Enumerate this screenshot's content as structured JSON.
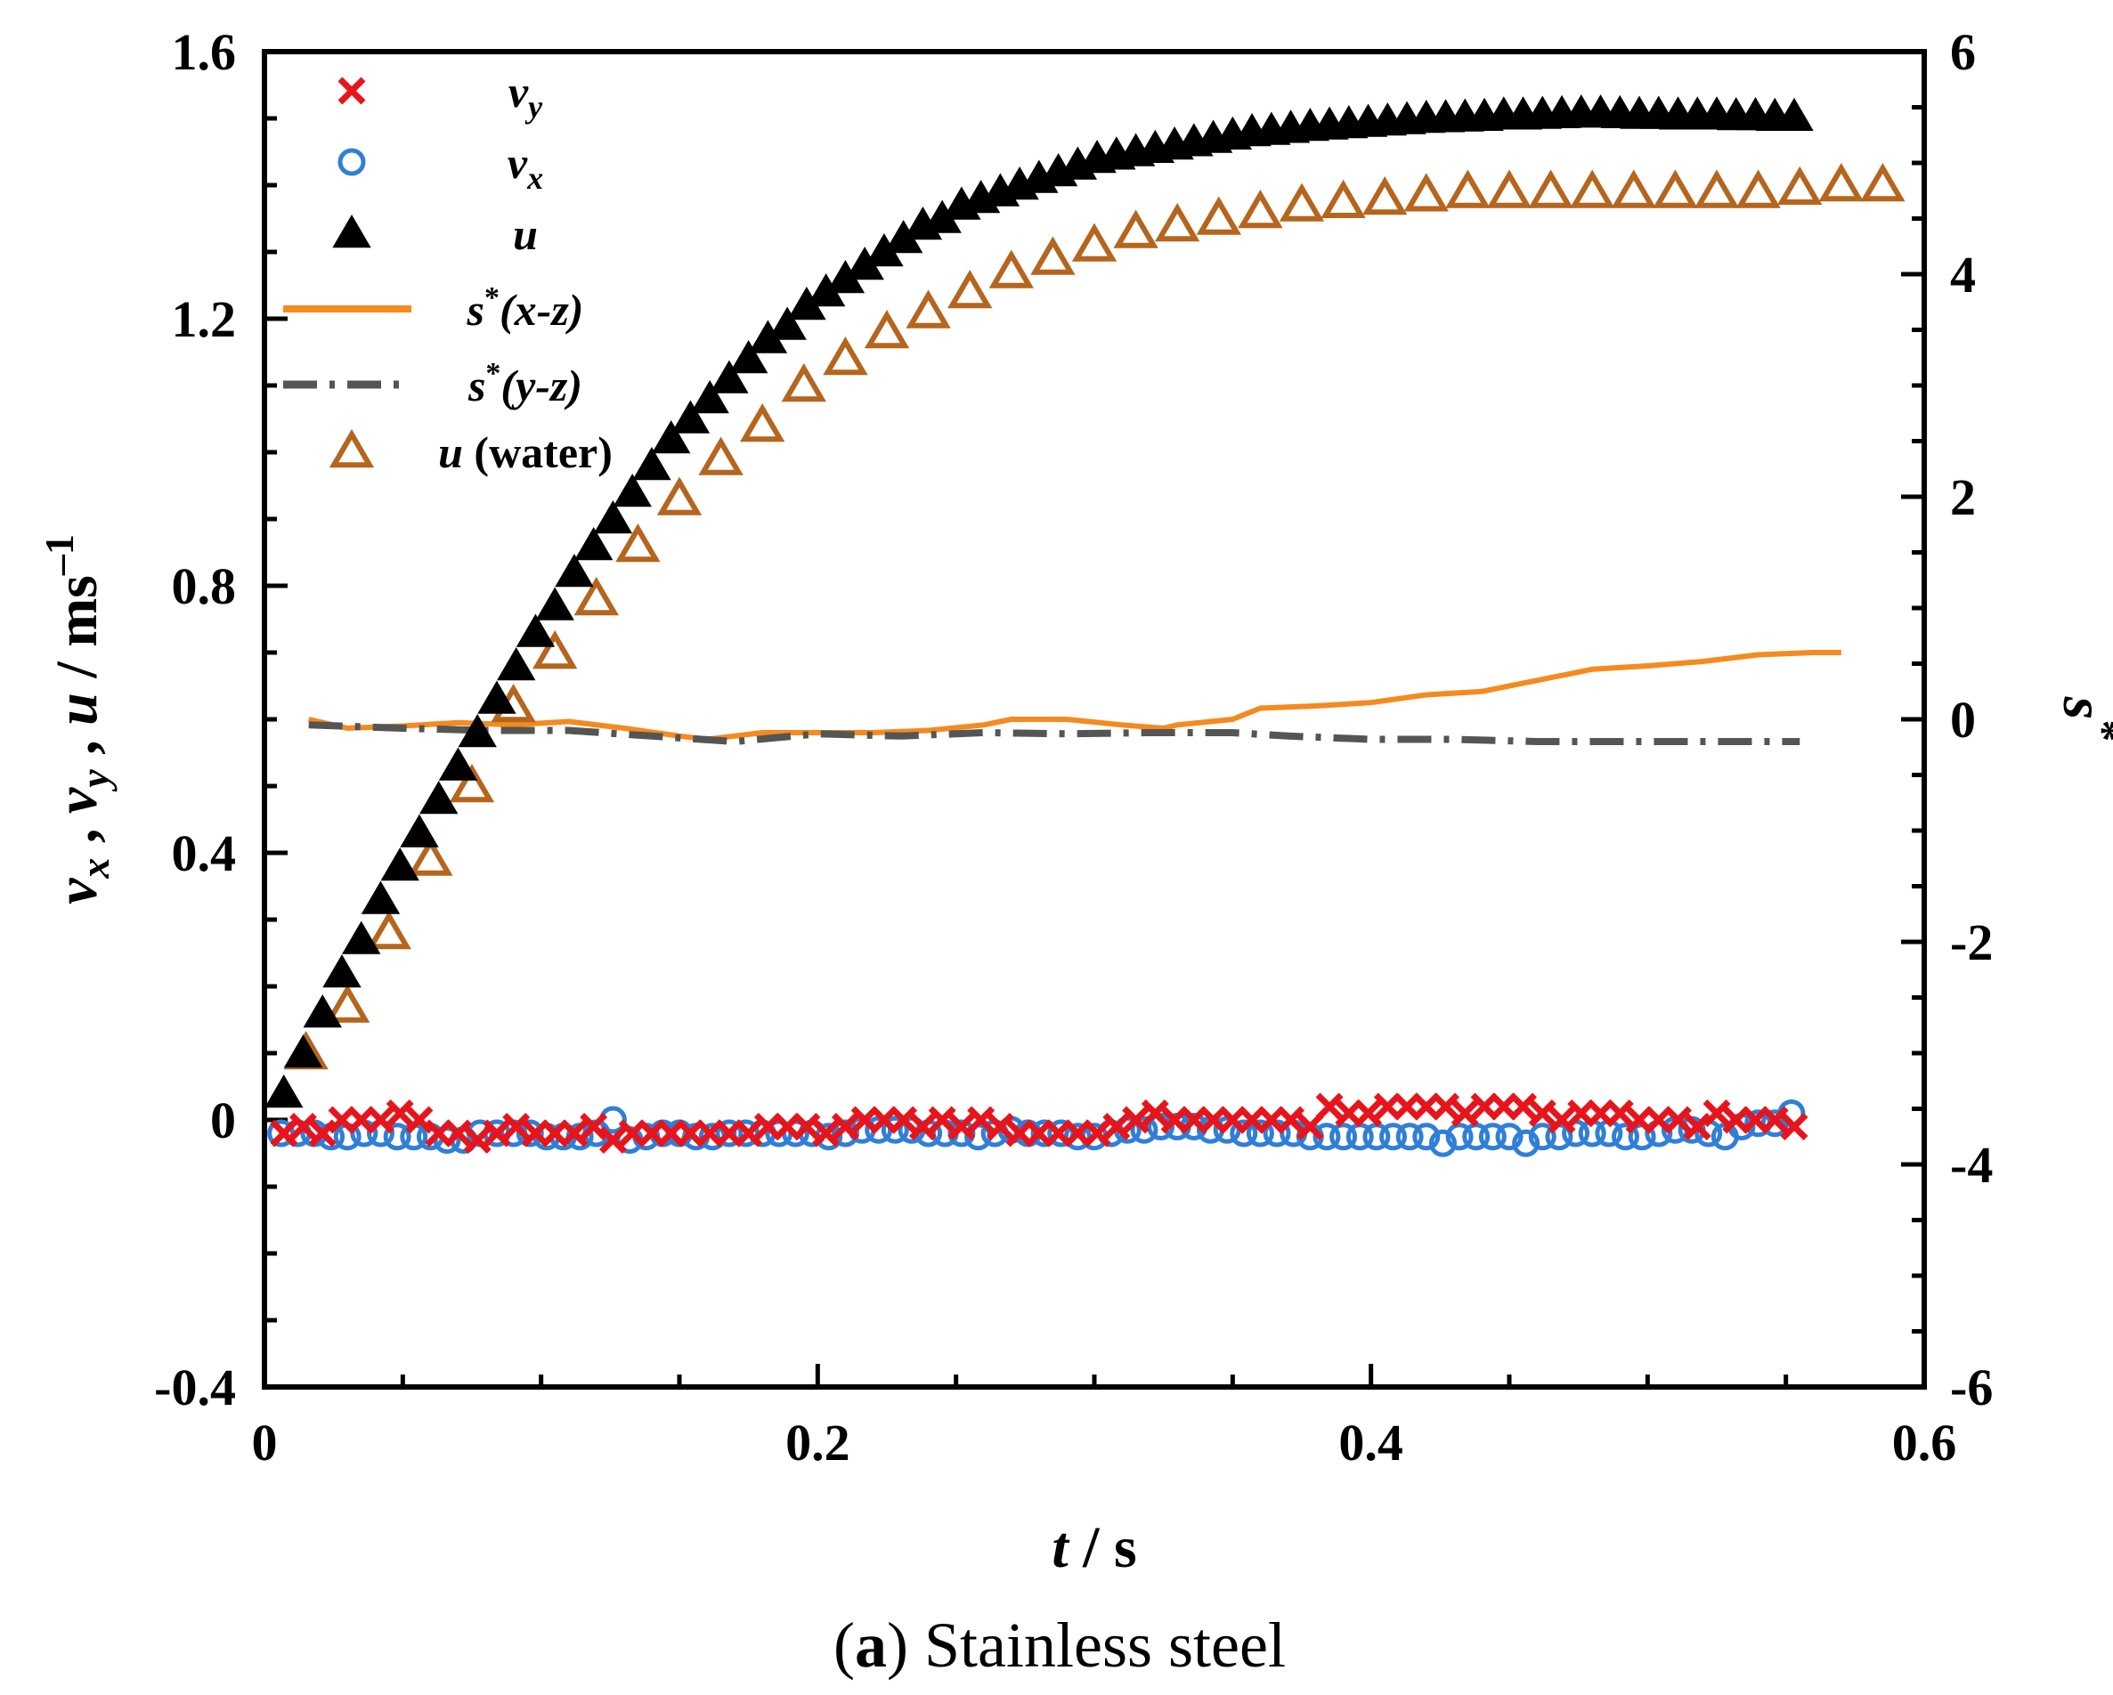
{
  "chart_data": {
    "type": "scatter",
    "caption": {
      "prefix": "(",
      "bold": "a",
      "rest": ") Stainless steel"
    },
    "xlabel": {
      "var": "t",
      "unit": " / s"
    },
    "ylabel": {
      "parts": [
        "v",
        "x",
        " , ",
        "v",
        "y",
        " , ",
        "u",
        " / ms",
        "–1"
      ]
    },
    "y2label": {
      "var": "s",
      "sup": "*"
    },
    "xlim": [
      0,
      0.6
    ],
    "ylim": [
      -0.4,
      1.6
    ],
    "y2lim": [
      -6,
      6
    ],
    "xticks": [
      "0",
      "0.2",
      "0.4",
      "0.6"
    ],
    "yticks": [
      "-0.4",
      "0",
      "0.4",
      "0.8",
      "1.2",
      "1.6"
    ],
    "y2ticks": [
      "-6",
      "-4",
      "-2",
      "0",
      "2",
      "4",
      "6"
    ],
    "colors": {
      "vy": "#e8141c",
      "vx": "#2f7fd8",
      "u": "#000000",
      "sxz": "#f58a1f",
      "syz": "#555555",
      "uwater": "#b5651d"
    },
    "legend": [
      {
        "key": "vy",
        "label": "v",
        "sub": "y",
        "marker": "cross"
      },
      {
        "key": "vx",
        "label": "v",
        "sub": "x",
        "marker": "circle"
      },
      {
        "key": "u",
        "label": "u",
        "marker": "triangle-filled"
      },
      {
        "key": "sxz",
        "label": "s",
        "sup": "*",
        "paren": "(x-z)",
        "marker": "solid-line"
      },
      {
        "key": "syz",
        "label": "s",
        "sup": "*",
        "paren": "(y-z)",
        "marker": "dashdot-line"
      },
      {
        "key": "uwater",
        "label": "u",
        "extra": " (water)",
        "marker": "triangle-open"
      }
    ],
    "series": [
      {
        "name": "u",
        "axis": "left",
        "x": [
          0.007,
          0.014,
          0.021,
          0.028,
          0.035,
          0.042,
          0.049,
          0.056,
          0.063,
          0.07,
          0.077,
          0.084,
          0.091,
          0.098,
          0.105,
          0.112,
          0.119,
          0.126,
          0.133,
          0.14,
          0.147,
          0.154,
          0.161,
          0.168,
          0.175,
          0.182,
          0.189,
          0.196,
          0.203,
          0.21,
          0.217,
          0.224,
          0.231,
          0.238,
          0.245,
          0.252,
          0.259,
          0.266,
          0.273,
          0.28,
          0.287,
          0.294,
          0.301,
          0.308,
          0.315,
          0.322,
          0.329,
          0.336,
          0.343,
          0.35,
          0.357,
          0.364,
          0.371,
          0.378,
          0.385,
          0.392,
          0.399,
          0.406,
          0.413,
          0.42,
          0.427,
          0.434,
          0.441,
          0.448,
          0.455,
          0.462,
          0.469,
          0.476,
          0.483,
          0.49,
          0.497,
          0.504,
          0.511,
          0.518,
          0.525,
          0.532,
          0.539,
          0.546,
          0.553
        ],
        "y": [
          0.04,
          0.1,
          0.16,
          0.22,
          0.27,
          0.33,
          0.38,
          0.43,
          0.48,
          0.53,
          0.58,
          0.63,
          0.68,
          0.73,
          0.77,
          0.82,
          0.86,
          0.9,
          0.94,
          0.98,
          1.02,
          1.05,
          1.08,
          1.11,
          1.14,
          1.17,
          1.19,
          1.22,
          1.24,
          1.26,
          1.28,
          1.3,
          1.32,
          1.34,
          1.35,
          1.37,
          1.38,
          1.39,
          1.4,
          1.41,
          1.42,
          1.43,
          1.44,
          1.445,
          1.45,
          1.455,
          1.46,
          1.465,
          1.47,
          1.475,
          1.48,
          1.482,
          1.485,
          1.488,
          1.49,
          1.492,
          1.494,
          1.496,
          1.498,
          1.5,
          1.501,
          1.502,
          1.503,
          1.505,
          1.505,
          1.506,
          1.507,
          1.508,
          1.508,
          1.507,
          1.506,
          1.506,
          1.505,
          1.505,
          1.505,
          1.504,
          1.504,
          1.503,
          1.503
        ]
      },
      {
        "name": "u (water)",
        "axis": "left",
        "x": [
          0.015,
          0.03,
          0.045,
          0.06,
          0.075,
          0.09,
          0.105,
          0.12,
          0.135,
          0.15,
          0.165,
          0.18,
          0.195,
          0.21,
          0.225,
          0.24,
          0.255,
          0.27,
          0.285,
          0.3,
          0.315,
          0.33,
          0.345,
          0.36,
          0.375,
          0.39,
          0.405,
          0.42,
          0.435,
          0.45,
          0.465,
          0.48,
          0.495,
          0.51,
          0.525,
          0.54,
          0.555,
          0.57,
          0.585
        ],
        "y": [
          0.1,
          0.17,
          0.28,
          0.39,
          0.5,
          0.62,
          0.7,
          0.78,
          0.86,
          0.93,
          0.99,
          1.04,
          1.1,
          1.14,
          1.18,
          1.21,
          1.24,
          1.27,
          1.29,
          1.31,
          1.33,
          1.34,
          1.35,
          1.36,
          1.37,
          1.375,
          1.38,
          1.385,
          1.39,
          1.39,
          1.39,
          1.39,
          1.39,
          1.39,
          1.39,
          1.39,
          1.395,
          1.4,
          1.4
        ]
      },
      {
        "name": "vy",
        "axis": "left",
        "x": [
          0.007,
          0.014,
          0.021,
          0.028,
          0.035,
          0.042,
          0.049,
          0.056,
          0.063,
          0.07,
          0.077,
          0.084,
          0.091,
          0.098,
          0.105,
          0.112,
          0.119,
          0.126,
          0.133,
          0.14,
          0.147,
          0.154,
          0.161,
          0.168,
          0.175,
          0.182,
          0.189,
          0.196,
          0.203,
          0.21,
          0.217,
          0.224,
          0.231,
          0.238,
          0.245,
          0.252,
          0.259,
          0.266,
          0.273,
          0.28,
          0.287,
          0.294,
          0.301,
          0.308,
          0.315,
          0.322,
          0.329,
          0.336,
          0.343,
          0.35,
          0.357,
          0.364,
          0.371,
          0.378,
          0.385,
          0.392,
          0.399,
          0.406,
          0.413,
          0.42,
          0.427,
          0.434,
          0.441,
          0.448,
          0.455,
          0.462,
          0.469,
          0.476,
          0.483,
          0.49,
          0.497,
          0.504,
          0.511,
          0.518,
          0.525,
          0.532,
          0.539,
          0.546,
          0.553
        ],
        "y": [
          -0.02,
          -0.01,
          -0.02,
          0.0,
          0.0,
          0.0,
          0.01,
          0.0,
          -0.02,
          -0.02,
          -0.03,
          -0.02,
          -0.01,
          -0.02,
          -0.02,
          -0.02,
          -0.01,
          -0.03,
          -0.02,
          -0.02,
          -0.02,
          -0.02,
          -0.02,
          -0.02,
          -0.02,
          -0.01,
          -0.01,
          -0.01,
          -0.02,
          -0.01,
          0.0,
          0.0,
          0.0,
          -0.01,
          0.0,
          -0.01,
          0.0,
          -0.01,
          -0.02,
          -0.02,
          -0.02,
          -0.02,
          -0.02,
          -0.01,
          0.0,
          0.01,
          0.0,
          0.0,
          0.0,
          0.0,
          0.0,
          0.0,
          0.0,
          -0.01,
          0.02,
          0.01,
          0.01,
          0.02,
          0.02,
          0.02,
          0.02,
          0.01,
          0.02,
          0.02,
          0.02,
          0.01,
          0.0,
          0.01,
          0.01,
          0.01,
          0.0,
          0.0,
          0.0,
          -0.01,
          0.01,
          0.0,
          0.0,
          0.0,
          -0.01
        ]
      },
      {
        "name": "vx",
        "axis": "left",
        "x": [
          0.006,
          0.012,
          0.018,
          0.024,
          0.03,
          0.036,
          0.042,
          0.048,
          0.054,
          0.06,
          0.066,
          0.072,
          0.078,
          0.084,
          0.09,
          0.096,
          0.102,
          0.108,
          0.114,
          0.12,
          0.126,
          0.132,
          0.138,
          0.144,
          0.15,
          0.156,
          0.162,
          0.168,
          0.174,
          0.18,
          0.186,
          0.192,
          0.198,
          0.204,
          0.21,
          0.216,
          0.222,
          0.228,
          0.234,
          0.24,
          0.246,
          0.252,
          0.258,
          0.264,
          0.27,
          0.276,
          0.282,
          0.288,
          0.294,
          0.3,
          0.306,
          0.312,
          0.318,
          0.324,
          0.33,
          0.336,
          0.342,
          0.348,
          0.354,
          0.36,
          0.366,
          0.372,
          0.378,
          0.384,
          0.39,
          0.396,
          0.402,
          0.408,
          0.414,
          0.42,
          0.426,
          0.432,
          0.438,
          0.444,
          0.45,
          0.456,
          0.462,
          0.468,
          0.474,
          0.48,
          0.486,
          0.492,
          0.498,
          0.504,
          0.51,
          0.516,
          0.522,
          0.528,
          0.534,
          0.54,
          0.546,
          0.552
        ],
        "y": [
          -0.02,
          -0.02,
          -0.02,
          -0.025,
          -0.025,
          -0.02,
          -0.02,
          -0.025,
          -0.025,
          -0.025,
          -0.03,
          -0.03,
          -0.02,
          -0.02,
          -0.02,
          -0.02,
          -0.025,
          -0.025,
          -0.025,
          -0.02,
          0.0,
          -0.03,
          -0.025,
          -0.02,
          -0.02,
          -0.025,
          -0.025,
          -0.02,
          -0.02,
          -0.02,
          -0.02,
          -0.02,
          -0.02,
          -0.025,
          -0.02,
          -0.015,
          -0.015,
          -0.015,
          -0.015,
          -0.02,
          -0.02,
          -0.02,
          -0.025,
          -0.02,
          -0.015,
          -0.02,
          -0.02,
          -0.02,
          -0.025,
          -0.025,
          -0.02,
          -0.015,
          -0.015,
          -0.01,
          -0.01,
          -0.01,
          -0.015,
          -0.015,
          -0.02,
          -0.02,
          -0.02,
          -0.02,
          -0.025,
          -0.025,
          -0.025,
          -0.025,
          -0.025,
          -0.025,
          -0.025,
          -0.025,
          -0.035,
          -0.025,
          -0.025,
          -0.025,
          -0.025,
          -0.035,
          -0.025,
          -0.025,
          -0.02,
          -0.02,
          -0.02,
          -0.025,
          -0.025,
          -0.02,
          -0.015,
          -0.015,
          -0.02,
          -0.025,
          -0.01,
          -0.005,
          -0.005,
          0.01
        ]
      },
      {
        "name": "s*(x-z)",
        "axis": "right",
        "x": [
          0.016,
          0.03,
          0.05,
          0.07,
          0.09,
          0.11,
          0.13,
          0.15,
          0.16,
          0.18,
          0.2,
          0.22,
          0.24,
          0.26,
          0.27,
          0.29,
          0.31,
          0.325,
          0.33,
          0.35,
          0.36,
          0.38,
          0.4,
          0.42,
          0.44,
          0.46,
          0.48,
          0.5,
          0.52,
          0.54,
          0.56,
          0.57
        ],
        "y": [
          0.0,
          -0.08,
          -0.06,
          -0.03,
          -0.05,
          -0.02,
          -0.08,
          -0.15,
          -0.18,
          -0.12,
          -0.12,
          -0.12,
          -0.1,
          -0.05,
          0.0,
          0.0,
          -0.05,
          -0.08,
          -0.05,
          0.0,
          0.1,
          0.12,
          0.15,
          0.22,
          0.25,
          0.35,
          0.45,
          0.48,
          0.52,
          0.58,
          0.6,
          0.6
        ]
      },
      {
        "name": "s*(y-z)",
        "axis": "right",
        "x": [
          0.016,
          0.05,
          0.08,
          0.11,
          0.14,
          0.17,
          0.2,
          0.23,
          0.26,
          0.29,
          0.32,
          0.35,
          0.37,
          0.4,
          0.43,
          0.46,
          0.49,
          0.52,
          0.555
        ],
        "y": [
          -0.05,
          -0.08,
          -0.1,
          -0.1,
          -0.15,
          -0.2,
          -0.13,
          -0.15,
          -0.12,
          -0.13,
          -0.12,
          -0.12,
          -0.15,
          -0.18,
          -0.18,
          -0.2,
          -0.2,
          -0.2,
          -0.2
        ]
      }
    ]
  }
}
